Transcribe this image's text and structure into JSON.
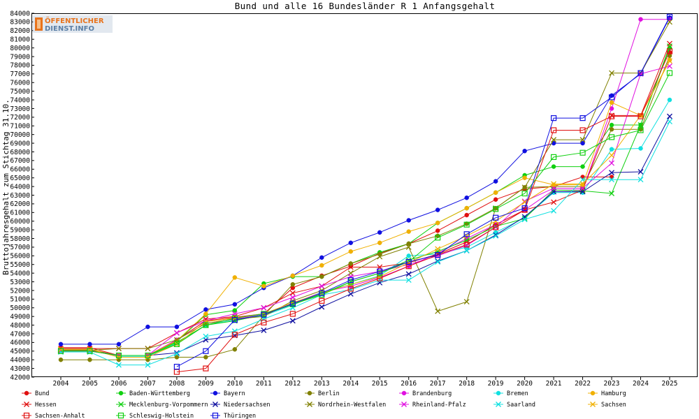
{
  "logo": {
    "line1": "ÖFFENTLICHER",
    "line2": "DIENST.INFO"
  },
  "chart_data": {
    "type": "line",
    "title": "Bund und alle 16 Bundesländer R 1 Anfangsgehalt",
    "ylabel": "Bruttojahresgehalt zum Stichtag 31.10.",
    "x": [
      "2004",
      "2005",
      "2006",
      "2007",
      "2008",
      "2009",
      "2010",
      "2011",
      "2012",
      "2013",
      "2014",
      "2015",
      "2016",
      "2017",
      "2018",
      "2019",
      "2020",
      "2021",
      "2022",
      "2023",
      "2024",
      "2025"
    ],
    "ylim": [
      42000,
      84000
    ],
    "yticks": [
      42000,
      43000,
      44000,
      45000,
      46000,
      47000,
      48000,
      49000,
      50000,
      51000,
      52000,
      53000,
      54000,
      55000,
      56000,
      57000,
      58000,
      59000,
      60000,
      61000,
      62000,
      63000,
      64000,
      65000,
      66000,
      67000,
      68000,
      69000,
      70000,
      71000,
      72000,
      73000,
      74000,
      75000,
      76000,
      77000,
      78000,
      79000,
      80000,
      81000,
      82000,
      83000,
      84000
    ],
    "grid": false,
    "legend_position": "bottom",
    "series": [
      {
        "name": "Bund",
        "color": "#e01010",
        "marker": "circle",
        "values": [
          45400,
          45400,
          44500,
          44500,
          46300,
          48500,
          48900,
          49300,
          52300,
          53700,
          54800,
          56300,
          57400,
          58900,
          60700,
          62500,
          63700,
          64000,
          65100,
          65100,
          null,
          79500
        ]
      },
      {
        "name": "Baden-Württemberg",
        "color": "#10d010",
        "marker": "circle",
        "values": [
          45100,
          45100,
          44500,
          44500,
          46100,
          49200,
          49700,
          52800,
          53600,
          53600,
          55100,
          56400,
          57400,
          59800,
          61500,
          63300,
          65300,
          66300,
          66300,
          71100,
          71100,
          80000
        ]
      },
      {
        "name": "Bayern",
        "color": "#1010e0",
        "marker": "circle",
        "values": [
          45800,
          45800,
          45800,
          47800,
          47800,
          49800,
          50400,
          52300,
          53700,
          55800,
          57500,
          58700,
          60100,
          61300,
          62700,
          64600,
          68100,
          69000,
          69000,
          74500,
          77000,
          83500
        ]
      },
      {
        "name": "Berlin",
        "color": "#808000",
        "marker": "circle",
        "values": [
          44000,
          44000,
          44000,
          44000,
          44300,
          44300,
          45200,
          49100,
          52700,
          53600,
          55100,
          56200,
          57400,
          58300,
          59700,
          61500,
          63900,
          64000,
          64000,
          70600,
          70600,
          79100
        ]
      },
      {
        "name": "Brandenburg",
        "color": "#e010e0",
        "marker": "circle",
        "values": [
          45100,
          45100,
          44500,
          44500,
          46300,
          48200,
          48700,
          49200,
          50500,
          51800,
          52500,
          53500,
          54800,
          56300,
          58000,
          59600,
          61300,
          63600,
          63600,
          73000,
          83300,
          83300
        ]
      },
      {
        "name": "Bremen",
        "color": "#10e0e0",
        "marker": "circle",
        "values": [
          45200,
          45200,
          44400,
          44400,
          45900,
          48000,
          48600,
          49100,
          50300,
          51800,
          52700,
          53700,
          56000,
          56200,
          57000,
          58700,
          60400,
          63300,
          63300,
          68300,
          68400,
          74000
        ]
      },
      {
        "name": "Hamburg",
        "color": "#f0b000",
        "marker": "circle",
        "values": [
          45200,
          45200,
          44500,
          44500,
          46200,
          49300,
          53500,
          52500,
          53700,
          54900,
          56500,
          57500,
          58800,
          59800,
          61500,
          63300,
          65000,
          64200,
          64200,
          73700,
          72200,
          78600
        ]
      },
      {
        "name": "Hessen",
        "color": "#e01010",
        "marker": "cross",
        "values": [
          45300,
          45300,
          45300,
          45300,
          47100,
          48700,
          49000,
          50000,
          51700,
          52500,
          54700,
          54700,
          55200,
          56200,
          57600,
          59600,
          61300,
          62200,
          63600,
          72200,
          72200,
          80500
        ]
      },
      {
        "name": "Mecklenburg-Vorpommern",
        "color": "#10d010",
        "marker": "cross",
        "values": [
          45000,
          45000,
          44500,
          44500,
          46000,
          48000,
          48500,
          49200,
          50400,
          51600,
          53000,
          54000,
          55500,
          56500,
          57800,
          59400,
          60300,
          63600,
          63500,
          63200,
          71100,
          80200
        ]
      },
      {
        "name": "Niedersachsen",
        "color": "#1010a0",
        "marker": "cross",
        "values": [
          45100,
          45100,
          44500,
          44500,
          44800,
          46300,
          46800,
          47400,
          48500,
          50100,
          51600,
          52900,
          53900,
          55400,
          56600,
          58400,
          60500,
          63400,
          63400,
          65600,
          65700,
          72100
        ]
      },
      {
        "name": "Nordrhein-Westfalen",
        "color": "#808000",
        "marker": "cross",
        "values": [
          45100,
          45100,
          45300,
          45300,
          46300,
          48200,
          48700,
          49000,
          50800,
          52000,
          54000,
          55900,
          57000,
          49600,
          50700,
          61500,
          63900,
          69400,
          69400,
          77100,
          77100,
          83000
        ]
      },
      {
        "name": "Rheinland-Pfalz",
        "color": "#e010e0",
        "marker": "cross",
        "values": [
          45000,
          45000,
          44500,
          44500,
          47100,
          48500,
          49300,
          50000,
          51200,
          52500,
          53600,
          54200,
          55000,
          56000,
          57200,
          59300,
          62300,
          63800,
          63800,
          66700,
          77000,
          77900
        ]
      },
      {
        "name": "Saarland",
        "color": "#10e0e0",
        "marker": "cross",
        "values": [
          44900,
          44900,
          43400,
          43400,
          44700,
          46700,
          47300,
          48700,
          50000,
          51500,
          52100,
          53200,
          53200,
          55300,
          56600,
          58300,
          60200,
          61200,
          64800,
          64800,
          64800,
          71500
        ]
      },
      {
        "name": "Sachsen",
        "color": "#f0b000",
        "marker": "cross",
        "values": [
          45200,
          45200,
          44300,
          44300,
          45800,
          48400,
          48800,
          49300,
          50600,
          51700,
          52700,
          53600,
          55200,
          56800,
          58300,
          60000,
          62200,
          64300,
          64300,
          67600,
          72200,
          78500
        ]
      },
      {
        "name": "Sachsen-Anhalt",
        "color": "#e01010",
        "marker": "square",
        "values": [
          null,
          null,
          null,
          null,
          42600,
          43000,
          46900,
          48300,
          49300,
          50800,
          52200,
          53400,
          54800,
          56100,
          57300,
          59300,
          61300,
          70500,
          70500,
          72100,
          72100,
          79600
        ]
      },
      {
        "name": "Schleswig-Holstein",
        "color": "#10d010",
        "marker": "square",
        "values": [
          45000,
          45000,
          44500,
          44500,
          45800,
          48000,
          48800,
          49300,
          50400,
          51500,
          53000,
          54000,
          55300,
          58100,
          59600,
          61400,
          63200,
          67400,
          67900,
          69700,
          70500,
          77100
        ]
      },
      {
        "name": "Thüringen",
        "color": "#1010e0",
        "marker": "square",
        "values": [
          null,
          null,
          null,
          null,
          43200,
          45000,
          48600,
          49200,
          50500,
          51700,
          53200,
          54200,
          55300,
          56100,
          58500,
          60400,
          61500,
          71900,
          71900,
          74300,
          77100,
          83600
        ]
      }
    ]
  }
}
